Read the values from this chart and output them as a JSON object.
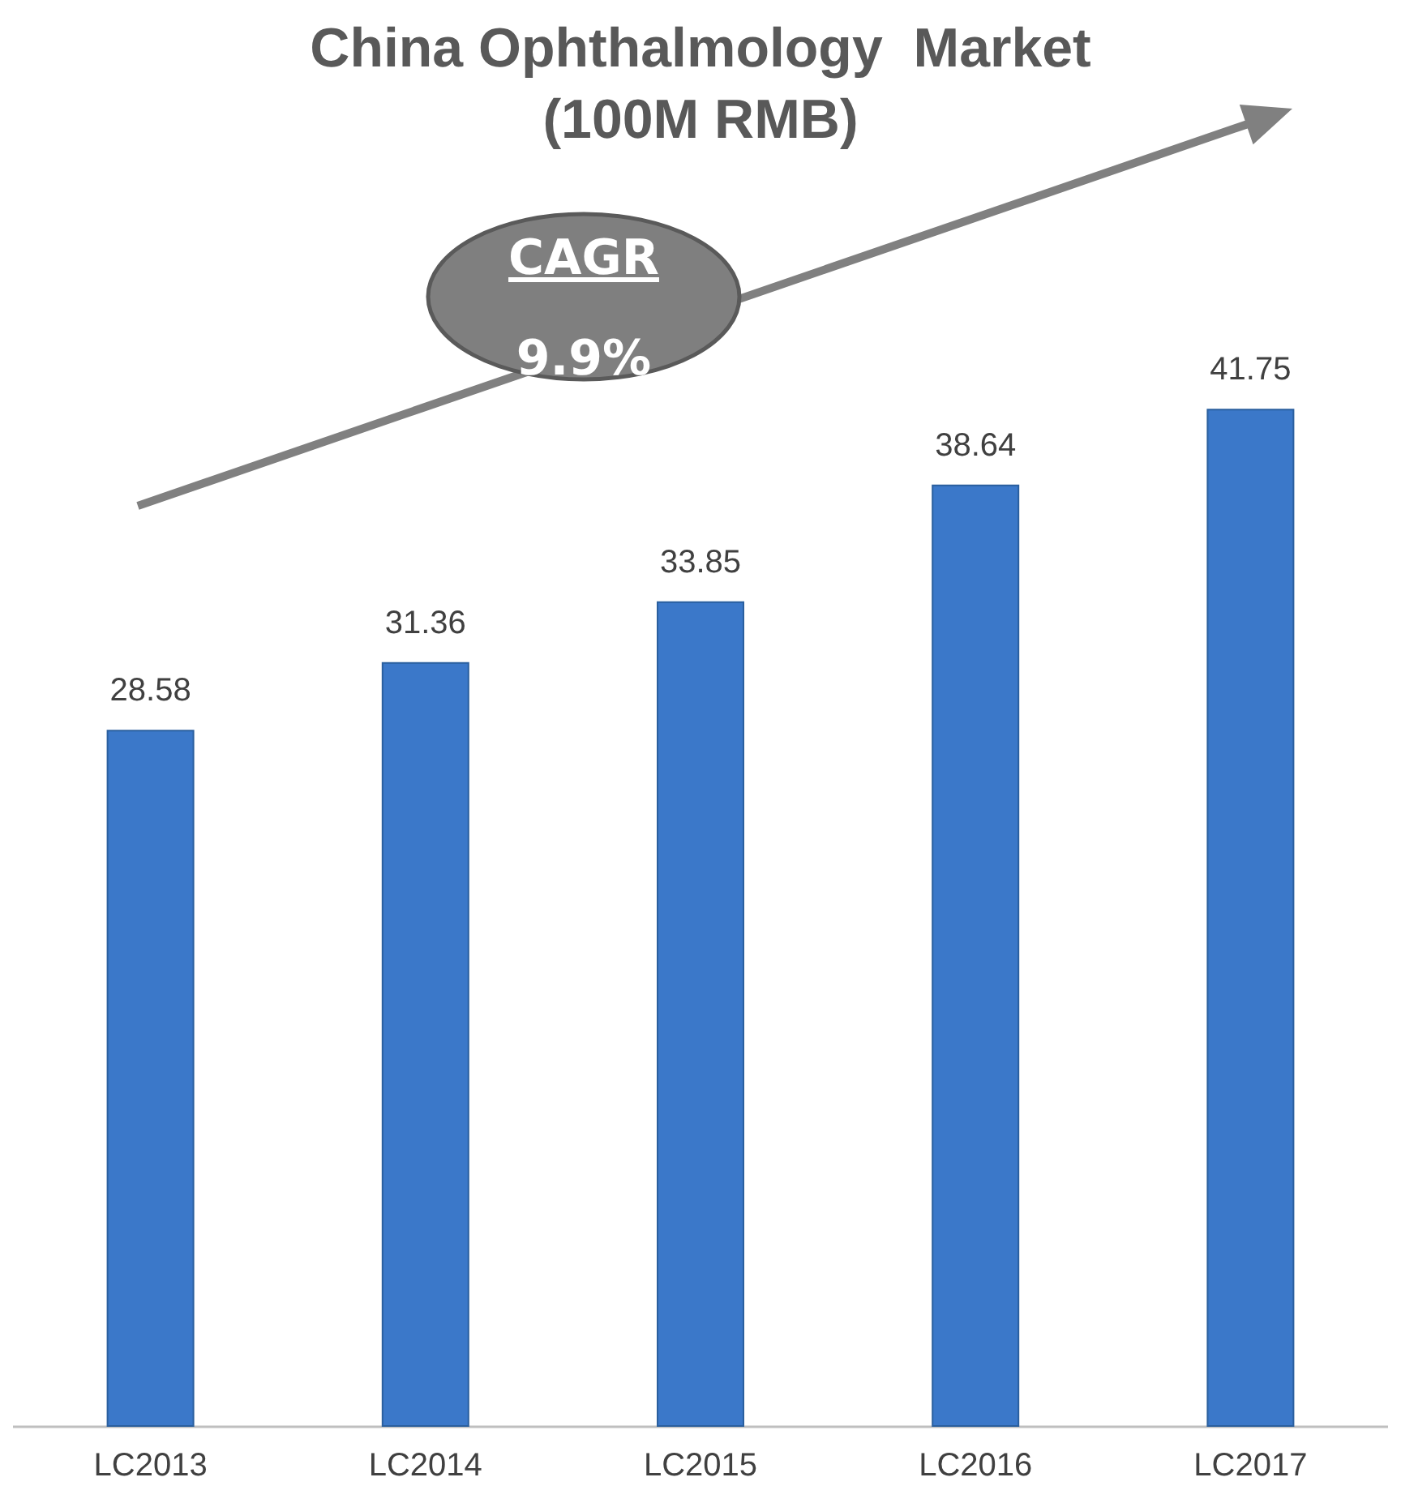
{
  "chart_data": {
    "type": "bar",
    "title": "China Ophthalmology  Market",
    "subtitle": "(100M RMB)",
    "categories": [
      "LC2013",
      "LC2014",
      "LC2015",
      "LC2016",
      "LC2017"
    ],
    "values": [
      28.58,
      31.36,
      33.85,
      38.64,
      41.75
    ],
    "color": "#3b78c9",
    "data_labels": true,
    "annotations": [
      "CAGR",
      "9.9%"
    ]
  }
}
